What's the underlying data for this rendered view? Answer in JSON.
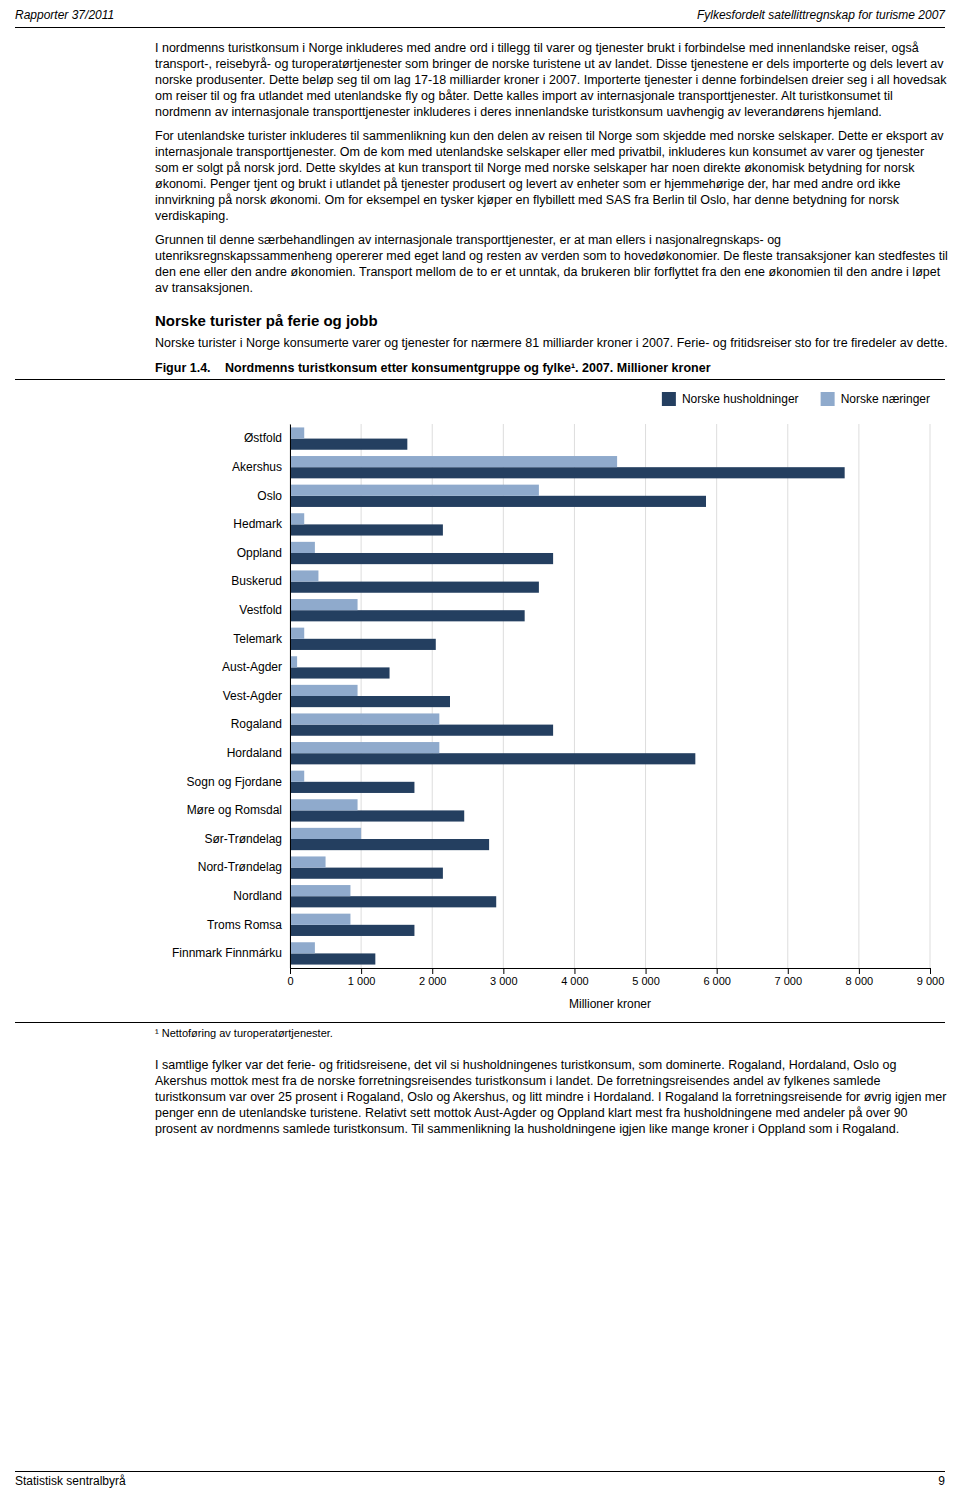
{
  "header_left": "Rapporter 37/2011",
  "header_right": "Fylkesfordelt satellittregnskap for turisme 2007",
  "para1": "I nordmenns turistkonsum i Norge inkluderes med andre ord i tillegg til varer og tjenester brukt i forbindelse med innenlandske reiser, også transport-, reisebyrå- og turoperatørtjenester som bringer de norske turistene ut av landet. Disse tjenestene er dels importerte og dels levert av norske produsenter. Dette beløp seg til om lag 17-18 milliarder kroner i 2007. Importerte tjenester i denne forbindelsen dreier seg i all hovedsak om reiser til og fra utlandet med utenlandske fly og båter. Dette kalles import av internasjonale transporttjenester. Alt turistkonsumet til nordmenn av internasjonale transporttjenester inkluderes i deres innenlandske turistkonsum uavhengig av leverandørens hjemland.",
  "para2": "For utenlandske turister inkluderes til sammenlikning kun den delen av reisen til Norge som skjedde med norske selskaper. Dette er eksport av internasjonale transporttjenester. Om de kom med utenlandske selskaper eller med privatbil, inkluderes kun konsumet av varer og tjenester som er solgt på norsk jord. Dette skyldes at kun transport til Norge med norske selskaper har noen direkte økonomisk betydning for norsk økonomi. Penger tjent og brukt i utlandet på tjenester produsert og levert av enheter som er hjemmehørige der, har med andre ord ikke innvirkning på norsk økonomi. Om for eksempel en tysker kjøper en flybillett med SAS fra Berlin til Oslo, har denne betydning for norsk verdiskaping.",
  "para3": "Grunnen til denne særbehandlingen av internasjonale transporttjenester, er at man ellers i nasjonalregnskaps- og utenriksregnskapssammenheng opererer med eget land og resten av verden som to hovedøkonomier. De fleste transaksjoner kan stedfestes til den ene eller den andre økonomien. Transport mellom de to er et unntak, da brukeren blir forflyttet fra den ene økonomien til den andre i løpet av transaksjonen.",
  "section_title": "Norske turister på ferie og jobb",
  "section_para": "Norske turister i Norge konsumerte varer og tjenester for nærmere 81 milliarder kroner i 2007. Ferie- og fritidsreiser sto for tre firedeler av dette.",
  "figure_label": "Figur 1.4.",
  "footnote": "¹ Nettoføring av turoperatørtjenester.",
  "para4": "I samtlige fylker var det ferie- og fritidsreisene, det vil si husholdningenes turistkonsum, som dominerte. Rogaland, Hordaland, Oslo og Akershus mottok mest fra de norske forretningsreisendes turistkonsum i landet. De forretningsreisendes andel av fylkenes samlede turistkonsum var over 25 prosent i Rogaland, Oslo og Akershus, og litt mindre i Hordaland. I Rogaland la forretningsreisende for øvrig igjen mer penger enn de utenlandske turistene. Relativt sett mottok Aust-Agder og Oppland klart mest fra husholdningene med andeler på over 90 prosent av nordmenns samlede turistkonsum. Til sammenlikning la husholdningene igjen like mange kroner i Oppland som i Rogaland.",
  "footer_left": "Statistisk sentralbyrå",
  "footer_right": "9",
  "chart_data": {
    "type": "bar",
    "orientation": "horizontal",
    "title": "Nordmenns turistkonsum etter konsumentgruppe og fylke¹. 2007. Millioner kroner",
    "xlabel": "Millioner kroner",
    "categories": [
      "Østfold",
      "Akershus",
      "Oslo",
      "Hedmark",
      "Oppland",
      "Buskerud",
      "Vestfold",
      "Telemark",
      "Aust-Agder",
      "Vest-Agder",
      "Rogaland",
      "Hordaland",
      "Sogn og Fjordane",
      "Møre og Romsdal",
      "Sør-Trøndelag",
      "Nord-Trøndelag",
      "Nordland",
      "Troms Romsa",
      "Finnmark Finnmárku"
    ],
    "series": [
      {
        "name": "Norske husholdninger",
        "color": "#243F60",
        "values": [
          1650,
          7800,
          5850,
          2150,
          3700,
          3500,
          3300,
          2050,
          1400,
          2250,
          3700,
          5700,
          1750,
          2450,
          2800,
          2150,
          2900,
          1750,
          1200
        ]
      },
      {
        "name": "Norske næringer",
        "color": "#8FAACC",
        "values": [
          200,
          4600,
          3500,
          200,
          350,
          400,
          950,
          200,
          100,
          950,
          2100,
          2100,
          200,
          950,
          1000,
          500,
          850,
          850,
          350
        ]
      }
    ],
    "xlim": [
      0,
      9000
    ],
    "xticks": [
      0,
      {
        "value": 1000,
        "label": "1 000"
      },
      {
        "value": 2000,
        "label": "2 000"
      },
      {
        "value": 3000,
        "label": "3 000"
      },
      {
        "value": 4000,
        "label": "4 000"
      },
      {
        "value": 5000,
        "label": "5 000"
      },
      {
        "value": 6000,
        "label": "6 000"
      },
      {
        "value": 7000,
        "label": "7 000"
      },
      {
        "value": 8000,
        "label": "8 000"
      },
      {
        "value": 9000,
        "label": "9 000"
      }
    ],
    "grid": true,
    "legend": "upper right"
  }
}
